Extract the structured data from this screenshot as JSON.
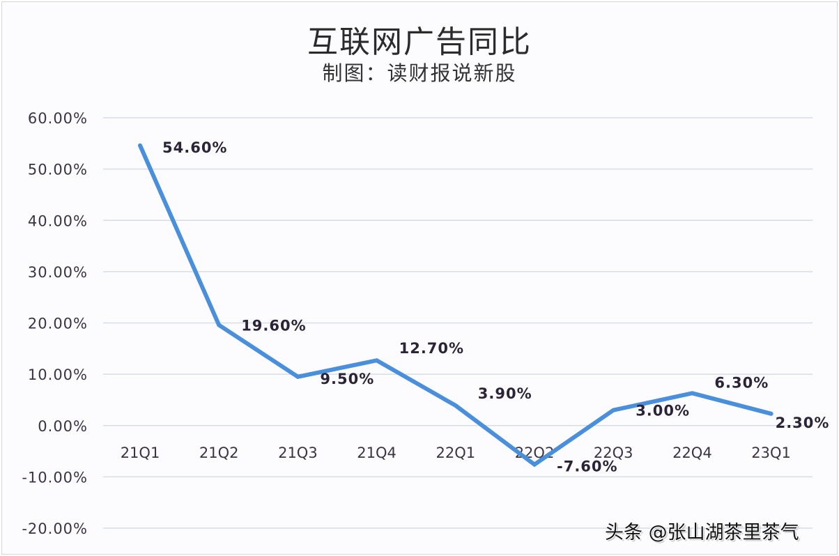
{
  "title": "互联网广告同比",
  "subtitle": "制图：读财报说新股",
  "watermark": "头条 @张山湖茶里茶气",
  "colors": {
    "line": "#4a8fdb",
    "grid": "#d7dde5",
    "text": "#3a3344",
    "background": "#fcfcfe"
  },
  "chart_data": {
    "type": "line",
    "title": "互联网广告同比",
    "subtitle": "制图：读财报说新股",
    "xlabel": "",
    "ylabel": "",
    "categories": [
      "21Q1",
      "21Q2",
      "21Q3",
      "21Q4",
      "22Q1",
      "22Q2",
      "22Q3",
      "22Q4",
      "23Q1"
    ],
    "series": [
      {
        "name": "互联网广告同比",
        "values": [
          54.6,
          19.6,
          9.5,
          12.7,
          3.9,
          -7.6,
          3.0,
          6.3,
          2.3
        ]
      }
    ],
    "data_labels": [
      "54.60%",
      "19.60%",
      "9.50%",
      "12.70%",
      "3.90%",
      "-7.60%",
      "3.00%",
      "6.30%",
      "2.30%"
    ],
    "yticks": [
      "60.00%",
      "50.00%",
      "40.00%",
      "30.00%",
      "20.00%",
      "10.00%",
      "0.00%",
      "-10.00%",
      "-20.00%"
    ],
    "ylim": [
      -20,
      60
    ],
    "grid": true,
    "legend": "none"
  }
}
